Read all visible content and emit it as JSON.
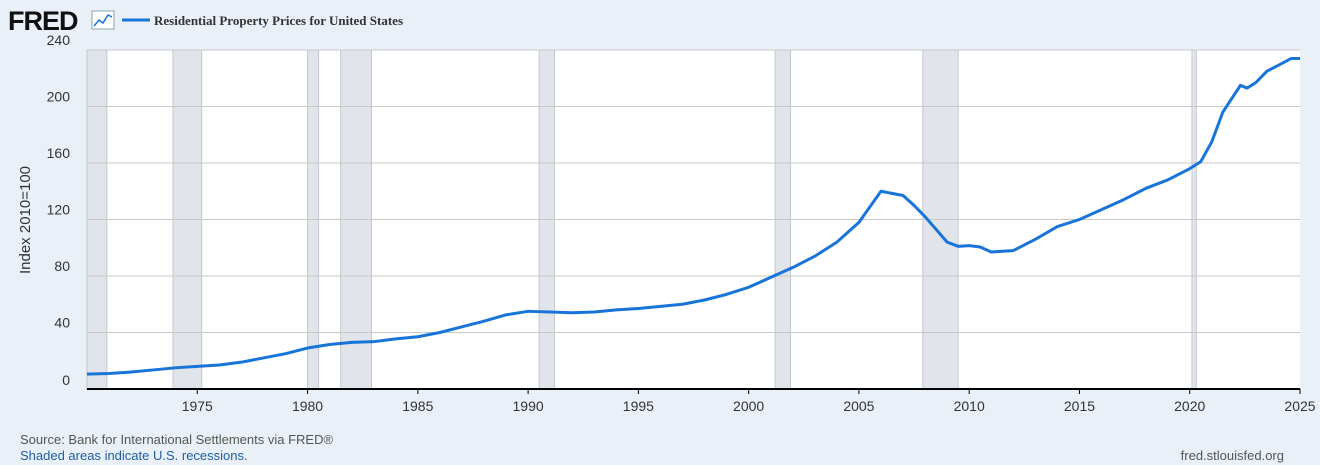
{
  "logo": "FRED",
  "chart_data": {
    "type": "line",
    "ylabel": "Index 2010=100",
    "x": [
      1970,
      1971,
      1972,
      1973,
      1974,
      1975,
      1976,
      1977,
      1978,
      1979,
      1980,
      1981,
      1982,
      1983,
      1984,
      1985,
      1986,
      1987,
      1988,
      1989,
      1990,
      1991,
      1992,
      1993,
      1994,
      1995,
      1996,
      1997,
      1998,
      1999,
      2000,
      2001,
      2002,
      2003,
      2004,
      2005,
      2006,
      2007,
      2007.5,
      2008,
      2009,
      2009.5,
      2010,
      2010.5,
      2011,
      2011.5,
      2012,
      2013,
      2014,
      2015,
      2016,
      2017,
      2018,
      2019,
      2020,
      2020.5,
      2021,
      2021.5,
      2022.3,
      2022.6,
      2023,
      2023.5,
      2024,
      2024.6,
      2025
    ],
    "series": [
      {
        "name": "Residential Property Prices for United States",
        "color": "#1874d9",
        "values": [
          10.5,
          11,
          12,
          13.5,
          15,
          16,
          17,
          19,
          22,
          25,
          29,
          31.5,
          33,
          33.5,
          35.5,
          37,
          40,
          44,
          48,
          52.5,
          55,
          54.5,
          54,
          54.5,
          56,
          57,
          58.5,
          60,
          63,
          67,
          72,
          79,
          86,
          94,
          104,
          118,
          140,
          137,
          130,
          122,
          104,
          101,
          101.5,
          100.5,
          97,
          97.5,
          98,
          106,
          115,
          120,
          127,
          134,
          142,
          148,
          156,
          161,
          175,
          196,
          215,
          213,
          217,
          225,
          229,
          234,
          234
        ]
      }
    ],
    "recessions": [
      [
        1970,
        1970.9
      ],
      [
        1973.9,
        1975.2
      ],
      [
        1980.0,
        1980.5
      ],
      [
        1981.5,
        1982.9
      ],
      [
        1990.5,
        1991.2
      ],
      [
        2001.2,
        2001.9
      ],
      [
        2007.9,
        2009.5
      ],
      [
        2020.1,
        2020.3
      ]
    ],
    "xlim": [
      1970,
      2025
    ],
    "xticks": [
      1975,
      1980,
      1985,
      1990,
      1995,
      2000,
      2005,
      2010,
      2015,
      2020,
      2025
    ],
    "ylim": [
      0,
      240
    ],
    "yticks": [
      0,
      40,
      80,
      120,
      160,
      200,
      240
    ],
    "grid": true,
    "source": "Source: Bank for International Settlements via FRED®",
    "note": "Shaded areas indicate U.S. recessions.",
    "site": "fred.stlouisfed.org"
  }
}
